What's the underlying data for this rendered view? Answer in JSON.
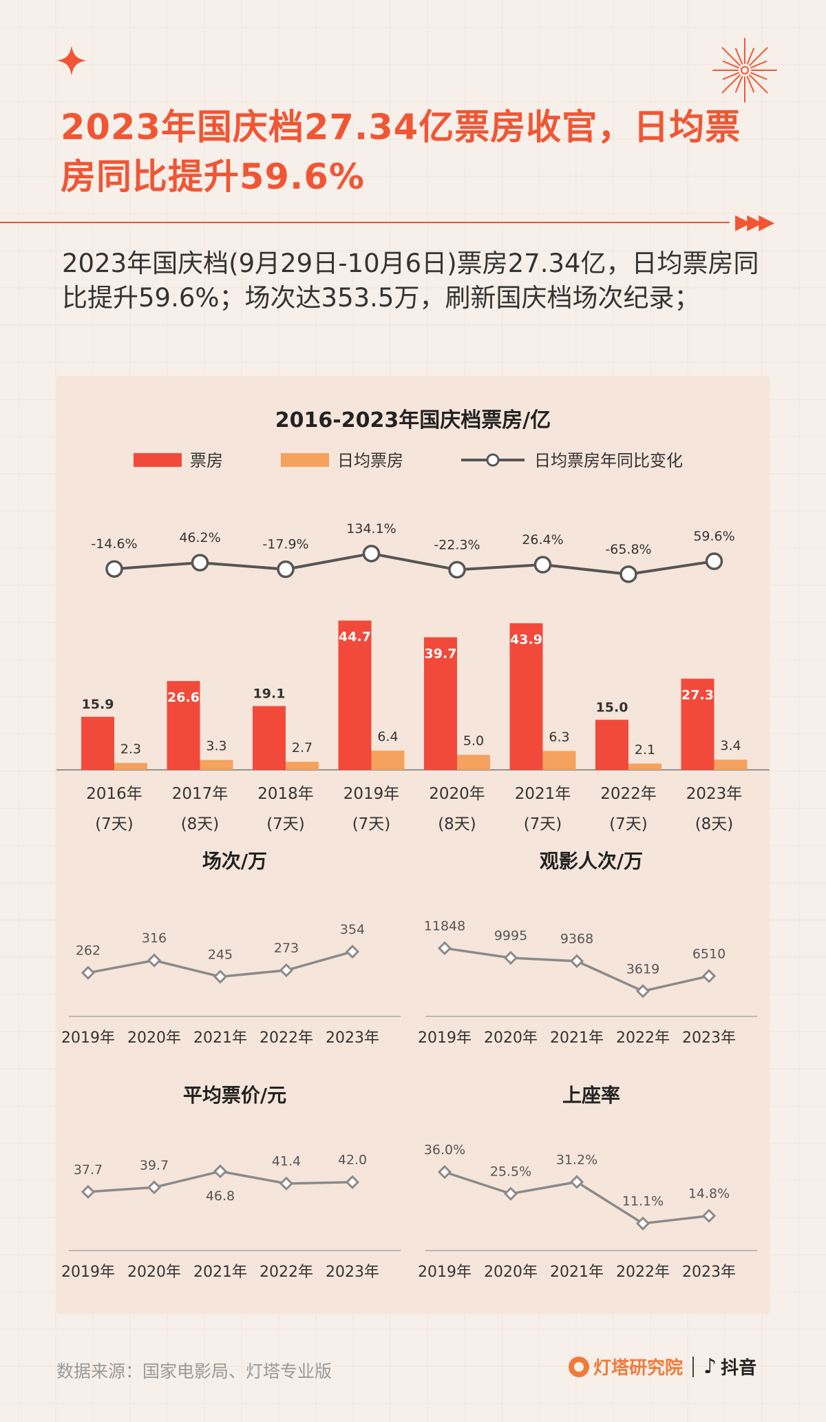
{
  "title": "2023年国庆档27.34亿票房收官，日均票房同比提升59.6%",
  "subtitle": "2023年国庆档(9月29日-10月6日)票房27.34亿，日均票房同比提升59.6%；场次达353.5万，刷新国庆档场次纪录；",
  "colors": {
    "accent": "#f05634",
    "bar_main": "#f24a3a",
    "bar_daily": "#f4a25e",
    "line": "#555555",
    "mini_line": "#8a8a8a"
  },
  "chart_data": [
    {
      "id": "main",
      "type": "bar",
      "title": "2016-2023年国庆档票房/亿",
      "legend": [
        "票房",
        "日均票房",
        "日均票房年同比变化"
      ],
      "categories": [
        "2016年",
        "2017年",
        "2018年",
        "2019年",
        "2020年",
        "2021年",
        "2022年",
        "2023年"
      ],
      "days": [
        "(7天)",
        "(8天)",
        "(7天)",
        "(7天)",
        "(8天)",
        "(7天)",
        "(7天)",
        "(8天)"
      ],
      "series": [
        {
          "name": "票房",
          "values": [
            15.9,
            26.6,
            19.1,
            44.7,
            39.7,
            43.9,
            15.0,
            27.3
          ]
        },
        {
          "name": "日均票房",
          "values": [
            2.3,
            3.3,
            2.7,
            6.4,
            5.0,
            6.3,
            2.1,
            3.4
          ]
        },
        {
          "name": "日均票房年同比变化",
          "values": [
            -14.6,
            46.2,
            -17.9,
            134.1,
            -22.3,
            26.4,
            -65.8,
            59.6
          ]
        }
      ],
      "value_labels": {
        "main": [
          "15.9",
          "26.6",
          "19.1",
          "44.7",
          "39.7",
          "43.9",
          "15.0",
          "27.3"
        ],
        "daily": [
          "2.3",
          "3.3",
          "2.7",
          "6.4",
          "5.0",
          "6.3",
          "2.1",
          "3.4"
        ],
        "yoy": [
          "-14.6%",
          "46.2%",
          "-17.9%",
          "134.1%",
          "-22.3%",
          "26.4%",
          "-65.8%",
          "59.6%"
        ]
      }
    },
    {
      "id": "screenings",
      "type": "line",
      "title": "场次/万",
      "categories": [
        "2019年",
        "2020年",
        "2021年",
        "2022年",
        "2023年"
      ],
      "values": [
        262,
        316,
        245,
        273,
        354
      ],
      "labels": [
        "262",
        "316",
        "245",
        "273",
        "354"
      ]
    },
    {
      "id": "admissions",
      "type": "line",
      "title": "观影人次/万",
      "categories": [
        "2019年",
        "2020年",
        "2021年",
        "2022年",
        "2023年"
      ],
      "values": [
        11848,
        9995,
        9368,
        3619,
        6510
      ],
      "labels": [
        "11848",
        "9995",
        "9368",
        "3619",
        "6510"
      ]
    },
    {
      "id": "price",
      "type": "line",
      "title": "平均票价/元",
      "categories": [
        "2019年",
        "2020年",
        "2021年",
        "2022年",
        "2023年"
      ],
      "values": [
        37.7,
        39.7,
        46.8,
        41.4,
        42.0
      ],
      "labels": [
        "37.7",
        "39.7",
        "46.8",
        "41.4",
        "42.0"
      ]
    },
    {
      "id": "occupancy",
      "type": "line",
      "title": "上座率",
      "categories": [
        "2019年",
        "2020年",
        "2021年",
        "2022年",
        "2023年"
      ],
      "values": [
        36.0,
        25.5,
        31.2,
        11.1,
        14.8
      ],
      "labels": [
        "36.0%",
        "25.5%",
        "31.2%",
        "11.1%",
        "14.8%"
      ]
    }
  ],
  "footer": {
    "source": "数据来源：国家电影局、灯塔专业版",
    "brand1": "灯塔研究院",
    "brand2": "抖音",
    "brand1_icon": "lighthouse-logo-icon",
    "brand2_icon": "douyin-note-icon"
  }
}
